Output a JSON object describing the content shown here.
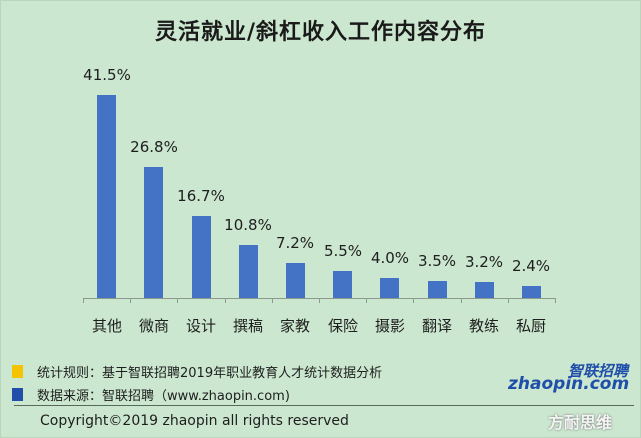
{
  "title": "灵活就业/斜杠收入工作内容分布",
  "chart_data": {
    "type": "bar",
    "title": "灵活就业/斜杠收入工作内容分布",
    "categories": [
      "其他",
      "微商",
      "设计",
      "撰稿",
      "家教",
      "保险",
      "摄影",
      "翻译",
      "教练",
      "私厨"
    ],
    "values": [
      41.5,
      26.8,
      16.7,
      10.8,
      7.2,
      5.5,
      4.0,
      3.5,
      3.2,
      2.4
    ],
    "value_labels": [
      "41.5%",
      "26.8%",
      "16.7%",
      "10.8%",
      "7.2%",
      "5.5%",
      "4.0%",
      "3.5%",
      "3.2%",
      "2.4%"
    ],
    "unit": "%",
    "xlabel": "",
    "ylabel": "",
    "ylim": [
      0,
      45
    ],
    "grid": false,
    "legend": null,
    "bar_color": "#4472c4"
  },
  "legend": {
    "items": [
      {
        "color": "#f5c400",
        "label": "统计规则：基于智联招聘2019年职业教育人才统计数据分析"
      },
      {
        "color": "#1f4fa8",
        "label": "数据来源：智联招聘（www.zhaopin.com)"
      }
    ]
  },
  "copyright": "Copyright©2019 zhaopin all rights reserved",
  "logo": {
    "cn": "智联招聘",
    "en": "zhaopin.com"
  },
  "watermark": "方耐思维",
  "colors": {
    "background": "#cbe7cf",
    "bar": "#4472c4",
    "text": "#1e1e1e"
  }
}
